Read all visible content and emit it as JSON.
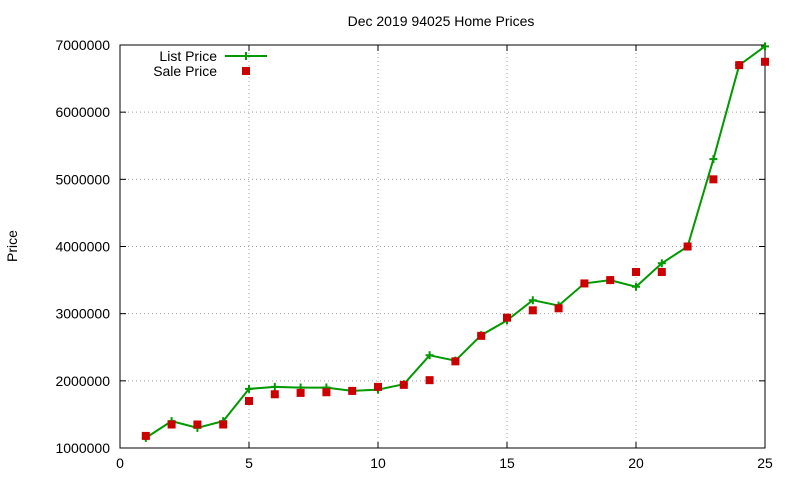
{
  "chart_data": {
    "type": "line",
    "title": "Dec 2019 94025 Home Prices",
    "xlabel": "",
    "ylabel": "Price",
    "xlim": [
      0,
      25
    ],
    "ylim": [
      1000000,
      7000000
    ],
    "x_ticks": [
      "0",
      "5",
      "10",
      "15",
      "20",
      "25"
    ],
    "y_ticks": [
      "1000000",
      "2000000",
      "3000000",
      "4000000",
      "5000000",
      "6000000",
      "7000000"
    ],
    "grid": true,
    "legend_position": "top-left",
    "series": [
      {
        "name": "List Price",
        "style": "lines with plus markers",
        "color": "#009900",
        "x": [
          1,
          2,
          3,
          4,
          5,
          6,
          7,
          8,
          9,
          10,
          11,
          12,
          13,
          14,
          15,
          16,
          17,
          18,
          19,
          20,
          21,
          22,
          23,
          24,
          25
        ],
        "values": [
          1150000,
          1400000,
          1300000,
          1400000,
          1880000,
          1910000,
          1900000,
          1900000,
          1850000,
          1870000,
          1950000,
          2380000,
          2300000,
          2680000,
          2900000,
          3200000,
          3120000,
          3450000,
          3500000,
          3400000,
          3750000,
          4000000,
          5300000,
          6700000,
          6980000
        ]
      },
      {
        "name": "Sale Price",
        "style": "square markers",
        "color": "#cc0000",
        "x": [
          1,
          2,
          3,
          4,
          5,
          6,
          7,
          8,
          9,
          10,
          11,
          12,
          13,
          14,
          15,
          16,
          17,
          18,
          19,
          20,
          21,
          22,
          23,
          24,
          25
        ],
        "values": [
          1180000,
          1350000,
          1350000,
          1350000,
          1700000,
          1800000,
          1820000,
          1830000,
          1850000,
          1910000,
          1940000,
          2010000,
          2290000,
          2670000,
          2940000,
          3050000,
          3080000,
          3450000,
          3500000,
          3620000,
          3620000,
          4000000,
          5000000,
          6700000,
          6750000
        ]
      }
    ]
  }
}
